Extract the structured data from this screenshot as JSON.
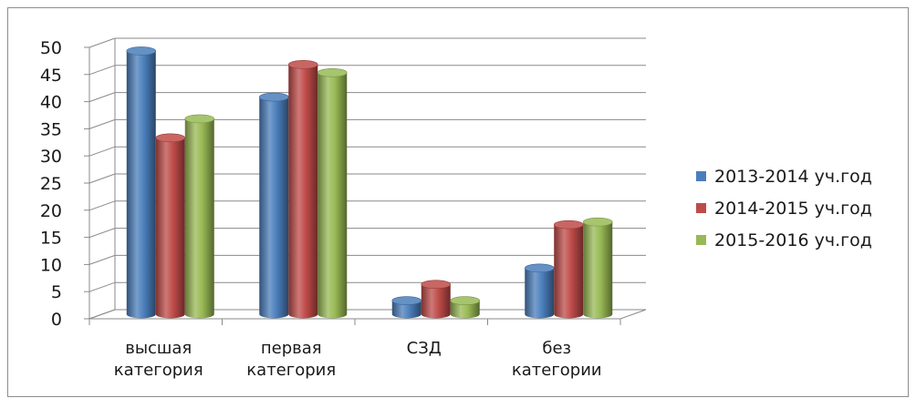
{
  "chart_data": {
    "type": "bar",
    "categories": [
      [
        "высшая",
        "категория"
      ],
      [
        "первая",
        "категория"
      ],
      [
        "СЗД"
      ],
      [
        "без",
        "категории"
      ]
    ],
    "series": [
      {
        "name": "2013-2014 уч.год",
        "color": "#4a7ebb",
        "values": [
          48.5,
          40,
          2.5,
          8.5
        ]
      },
      {
        "name": "2014-2015 уч.год",
        "color": "#be4b48",
        "values": [
          32.5,
          46,
          5.5,
          16.5
        ]
      },
      {
        "name": "2015-2016 уч.год",
        "color": "#98b954",
        "values": [
          36,
          44.5,
          2.5,
          17
        ]
      }
    ],
    "y_ticks": [
      "0",
      "5",
      "10",
      "15",
      "20",
      "25",
      "30",
      "35",
      "40",
      "45",
      "50"
    ],
    "ylim": [
      0,
      50
    ],
    "grid": true,
    "legend_position": "right",
    "style": "3d-cylinder"
  }
}
